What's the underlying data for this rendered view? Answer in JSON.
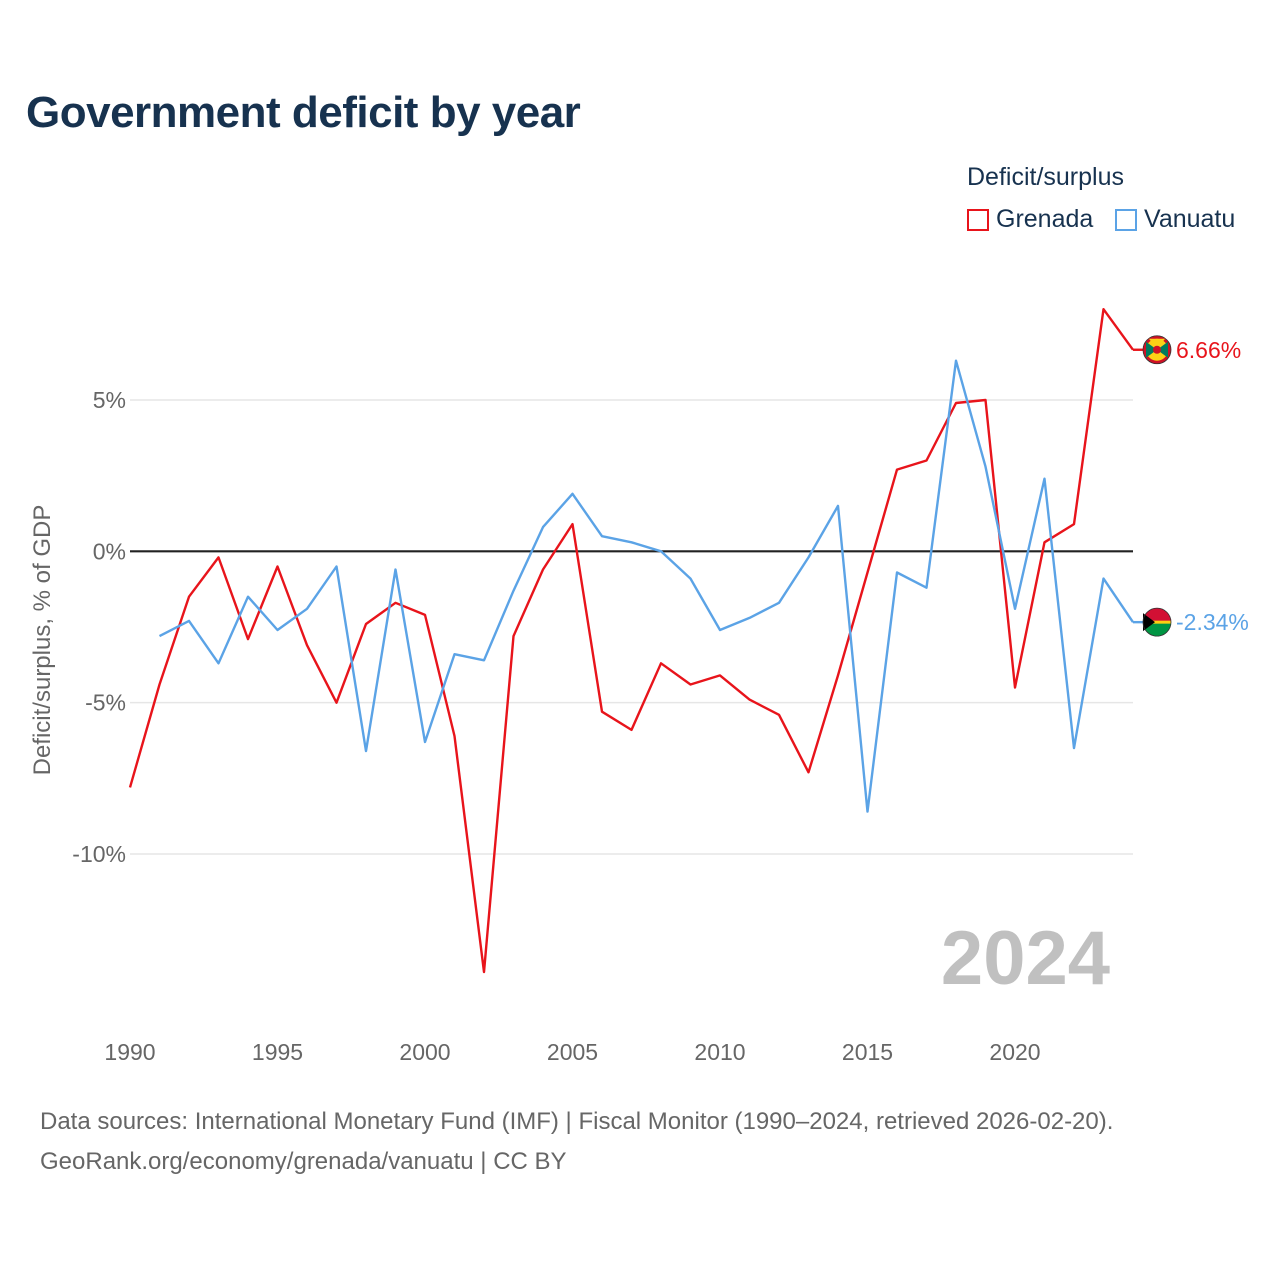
{
  "title": "Government deficit by year",
  "legend": {
    "title": "Deficit/surplus",
    "items": [
      {
        "label": "Grenada",
        "color": "#e8141b"
      },
      {
        "label": "Vanuatu",
        "color": "#5ba3e6"
      }
    ]
  },
  "year_watermark": "2024",
  "footer": {
    "source": "Data sources: International Monetary Fund (IMF) | Fiscal Monitor (1990–2024, retrieved 2026-02-20).",
    "credit": "GeoRank.org/economy/grenada/vanuatu | CC BY"
  },
  "chart_data": {
    "type": "line",
    "title": "Government deficit by year",
    "xlabel": "",
    "ylabel": "Deficit/surplus, % of GDP",
    "xlim": [
      1990,
      2024
    ],
    "ylim": [
      -15,
      9
    ],
    "x_ticks": [
      1990,
      1995,
      2000,
      2005,
      2010,
      2015,
      2020
    ],
    "y_ticks": [
      {
        "value": 5,
        "label": "5%"
      },
      {
        "value": 0,
        "label": "0%"
      },
      {
        "value": -5,
        "label": "-5%"
      },
      {
        "value": -10,
        "label": "-10%"
      }
    ],
    "series": [
      {
        "name": "Grenada",
        "color": "#e8141b",
        "x": [
          1990,
          1991,
          1992,
          1993,
          1994,
          1995,
          1996,
          1997,
          1998,
          1999,
          2000,
          2001,
          2002,
          2003,
          2004,
          2005,
          2006,
          2007,
          2008,
          2009,
          2010,
          2011,
          2012,
          2013,
          2014,
          2015,
          2016,
          2017,
          2018,
          2019,
          2020,
          2021,
          2022,
          2023,
          2024
        ],
        "values": [
          -7.8,
          -4.4,
          -1.5,
          -0.2,
          -2.9,
          -0.5,
          -3.1,
          -5.0,
          -2.4,
          -1.7,
          -2.1,
          -6.1,
          -13.9,
          -2.8,
          -0.6,
          0.9,
          -5.3,
          -5.9,
          -3.7,
          -4.4,
          -4.1,
          -4.9,
          -5.4,
          -7.3,
          -4.1,
          -0.7,
          2.7,
          3.0,
          4.9,
          5.0,
          -4.5,
          0.3,
          0.9,
          8.0,
          6.66
        ],
        "end_label": "6.66%"
      },
      {
        "name": "Vanuatu",
        "color": "#5ba3e6",
        "x": [
          1991,
          1992,
          1993,
          1994,
          1995,
          1996,
          1997,
          1998,
          1999,
          2000,
          2001,
          2002,
          2003,
          2004,
          2005,
          2006,
          2007,
          2008,
          2009,
          2010,
          2011,
          2012,
          2013,
          2014,
          2015,
          2016,
          2017,
          2018,
          2019,
          2020,
          2021,
          2022,
          2023,
          2024
        ],
        "values": [
          -2.8,
          -2.3,
          -3.7,
          -1.5,
          -2.6,
          -1.9,
          -0.5,
          -6.6,
          -0.6,
          -6.3,
          -3.4,
          -3.6,
          -1.3,
          0.8,
          1.9,
          0.5,
          0.3,
          0.0,
          -0.9,
          -2.6,
          -2.2,
          -1.7,
          -0.2,
          1.5,
          -8.6,
          -0.7,
          -1.2,
          6.3,
          2.8,
          -1.9,
          2.4,
          -6.5,
          -0.9,
          -2.34
        ],
        "end_label": "-2.34%"
      }
    ]
  }
}
